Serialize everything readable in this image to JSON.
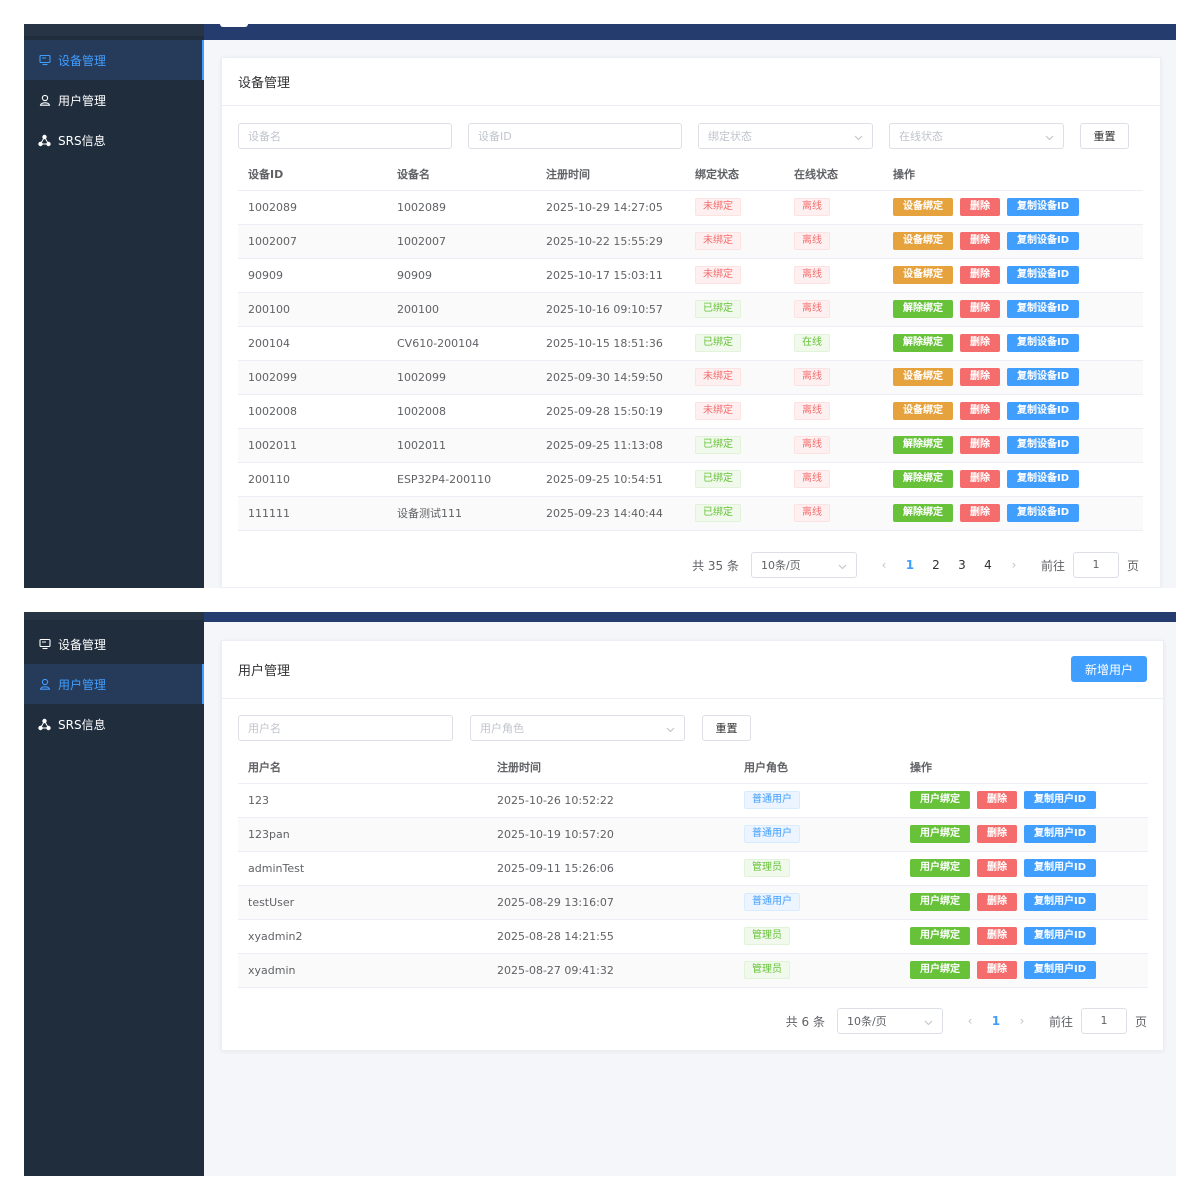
{
  "sidebar": {
    "items": [
      {
        "label": "设备管理",
        "icon": "monitor-icon"
      },
      {
        "label": "用户管理",
        "icon": "user-icon"
      },
      {
        "label": "SRS信息",
        "icon": "cluster-icon"
      }
    ]
  },
  "device_page": {
    "title": "设备管理",
    "filters": {
      "name_placeholder": "设备名",
      "id_placeholder": "设备ID",
      "bind_placeholder": "绑定状态",
      "online_placeholder": "在线状态",
      "reset_label": "重置"
    },
    "columns": [
      "设备ID",
      "设备名",
      "注册时间",
      "绑定状态",
      "在线状态",
      "操作"
    ],
    "rows": [
      {
        "id": "1002089",
        "name": "1002089",
        "time": "2025-10-29 14:27:05",
        "bind": "未绑定",
        "online": "离线",
        "action1": "设备绑定"
      },
      {
        "id": "1002007",
        "name": "1002007",
        "time": "2025-10-22 15:55:29",
        "bind": "未绑定",
        "online": "离线",
        "action1": "设备绑定"
      },
      {
        "id": "90909",
        "name": "90909",
        "time": "2025-10-17 15:03:11",
        "bind": "未绑定",
        "online": "离线",
        "action1": "设备绑定"
      },
      {
        "id": "200100",
        "name": "200100",
        "time": "2025-10-16 09:10:57",
        "bind": "已绑定",
        "online": "离线",
        "action1": "解除绑定"
      },
      {
        "id": "200104",
        "name": "CV610-200104",
        "time": "2025-10-15 18:51:36",
        "bind": "已绑定",
        "online": "在线",
        "action1": "解除绑定"
      },
      {
        "id": "1002099",
        "name": "1002099",
        "time": "2025-09-30 14:59:50",
        "bind": "未绑定",
        "online": "离线",
        "action1": "设备绑定"
      },
      {
        "id": "1002008",
        "name": "1002008",
        "time": "2025-09-28 15:50:19",
        "bind": "未绑定",
        "online": "离线",
        "action1": "设备绑定"
      },
      {
        "id": "1002011",
        "name": "1002011",
        "time": "2025-09-25 11:13:08",
        "bind": "已绑定",
        "online": "离线",
        "action1": "解除绑定"
      },
      {
        "id": "200110",
        "name": "ESP32P4-200110",
        "time": "2025-09-25 10:54:51",
        "bind": "已绑定",
        "online": "离线",
        "action1": "解除绑定"
      },
      {
        "id": "111111",
        "name": "设备测试111",
        "time": "2025-09-23 14:40:44",
        "bind": "已绑定",
        "online": "离线",
        "action1": "解除绑定"
      }
    ],
    "delete_label": "删除",
    "copy_label": "复制设备ID",
    "pagination": {
      "total": "共 35 条",
      "page_size": "10条/页",
      "pages": [
        "1",
        "2",
        "3",
        "4"
      ],
      "current": "1",
      "goto_label": "前往",
      "goto_value": "1",
      "page_suffix": "页"
    }
  },
  "user_page": {
    "title": "用户管理",
    "add_label": "新增用户",
    "filters": {
      "name_placeholder": "用户名",
      "role_placeholder": "用户角色",
      "reset_label": "重置"
    },
    "columns": [
      "用户名",
      "注册时间",
      "用户角色",
      "操作"
    ],
    "rows": [
      {
        "name": "123",
        "time": "2025-10-26 10:52:22",
        "role": "普通用户"
      },
      {
        "name": "123pan",
        "time": "2025-10-19 10:57:20",
        "role": "普通用户"
      },
      {
        "name": "adminTest",
        "time": "2025-09-11 15:26:06",
        "role": "管理员"
      },
      {
        "name": "testUser",
        "time": "2025-08-29 13:16:07",
        "role": "普通用户"
      },
      {
        "name": "xyadmin2",
        "time": "2025-08-28 14:21:55",
        "role": "管理员"
      },
      {
        "name": "xyadmin",
        "time": "2025-08-27 09:41:32",
        "role": "管理员"
      }
    ],
    "bind_label": "用户绑定",
    "delete_label": "删除",
    "copy_label": "复制用户ID",
    "pagination": {
      "total": "共 6 条",
      "page_size": "10条/页",
      "pages": [
        "1"
      ],
      "current": "1",
      "goto_label": "前往",
      "goto_value": "1",
      "page_suffix": "页"
    }
  },
  "colors": {
    "sidebar_bg": "#1f2d3d",
    "topbar": "#243c6e",
    "primary": "#409eff",
    "success": "#67c23a",
    "warning": "#e6a23c",
    "danger": "#f56c6c"
  }
}
